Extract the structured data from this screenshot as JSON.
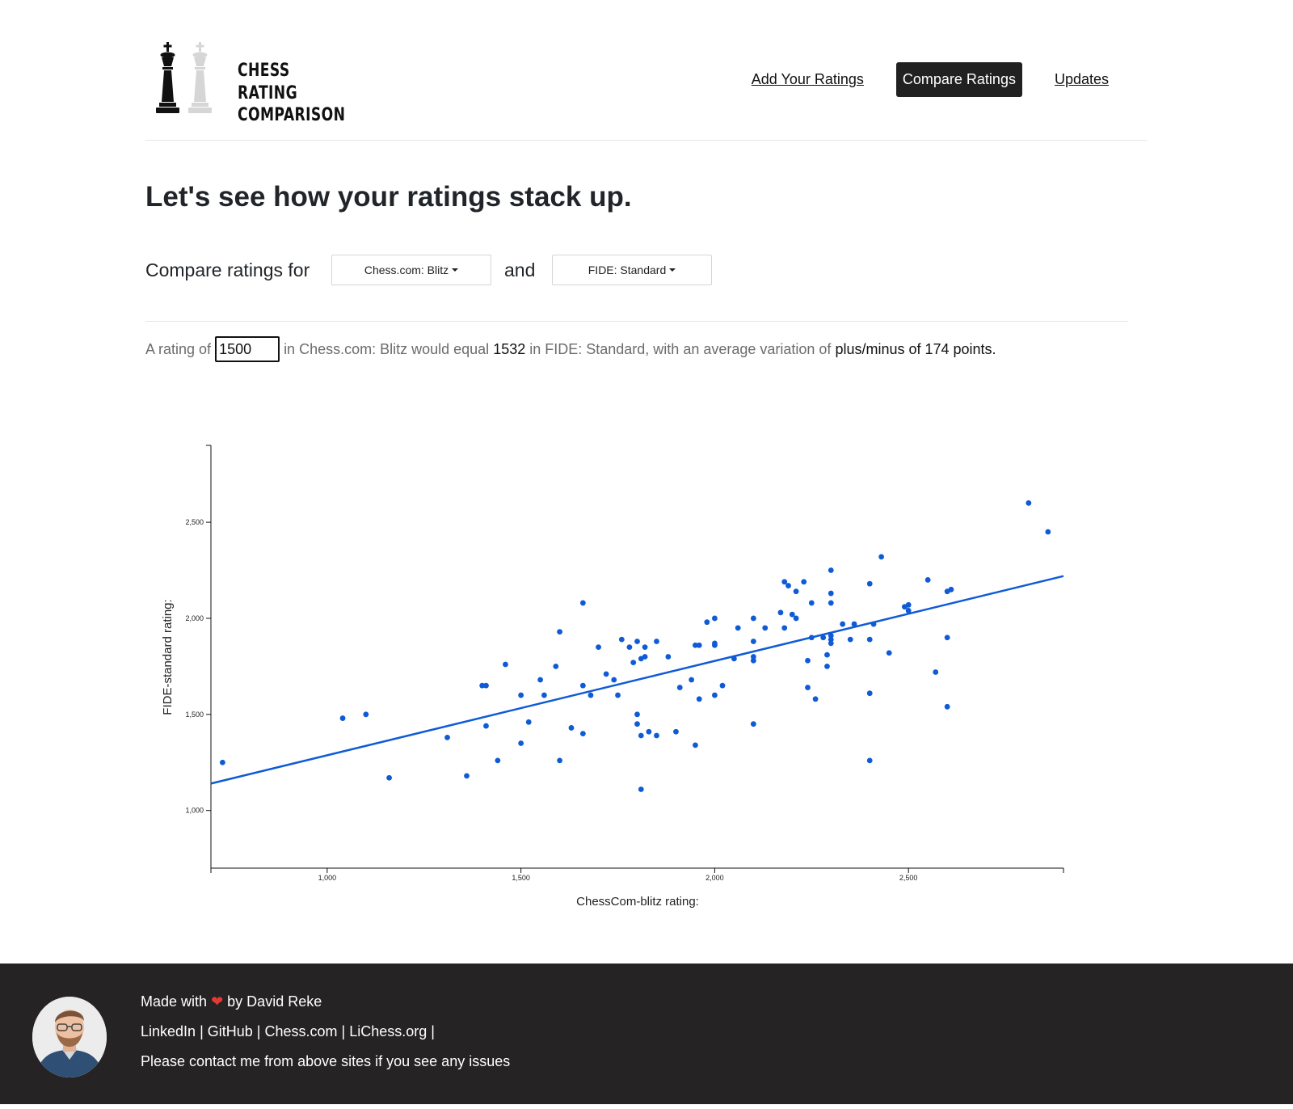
{
  "header": {
    "logo_lines": [
      "CHESS",
      "RATING",
      "COMPARISON"
    ],
    "nav": [
      {
        "label": "Add Your Ratings"
      },
      {
        "label": "Compare Ratings"
      },
      {
        "label": "Updates"
      }
    ]
  },
  "main": {
    "headline": "Let's see how your ratings stack up.",
    "compare_label": "Compare ratings for",
    "dropdown_a": "Chess.com: Blitz",
    "and_label": "and",
    "dropdown_b": "FIDE: Standard",
    "result": {
      "prefix": "A rating of",
      "input_value": "1500",
      "mid": "in Chess.com: Blitz would equal",
      "equal_value": "1532",
      "suffix": "in FIDE: Standard, with an average variation of",
      "variation": "plus/minus of 174 points."
    }
  },
  "chart_data": {
    "type": "scatter",
    "xlabel": "ChessCom-blitz rating:",
    "ylabel": "FIDE-standard rating:",
    "xlim": [
      700,
      2900
    ],
    "ylim": [
      700,
      2900
    ],
    "xticks": [
      {
        "v": 1000,
        "label": "1,000"
      },
      {
        "v": 1500,
        "label": "1,500"
      },
      {
        "v": 2000,
        "label": "2,000"
      },
      {
        "v": 2500,
        "label": "2,500"
      }
    ],
    "yticks": [
      {
        "v": 1000,
        "label": "1,000"
      },
      {
        "v": 1500,
        "label": "1,500"
      },
      {
        "v": 2000,
        "label": "2,000"
      },
      {
        "v": 2500,
        "label": "2,500"
      }
    ],
    "point_color": "#0f5bd6",
    "trend_line": {
      "x": [
        700,
        2900
      ],
      "y": [
        1140,
        2220
      ],
      "color": "#0f5bd6"
    },
    "points": [
      [
        730,
        1250
      ],
      [
        1040,
        1480
      ],
      [
        1100,
        1500
      ],
      [
        1160,
        1170
      ],
      [
        1310,
        1380
      ],
      [
        1360,
        1180
      ],
      [
        1400,
        1650
      ],
      [
        1410,
        1650
      ],
      [
        1410,
        1440
      ],
      [
        1440,
        1260
      ],
      [
        1460,
        1760
      ],
      [
        1500,
        1600
      ],
      [
        1500,
        1350
      ],
      [
        1520,
        1460
      ],
      [
        1550,
        1680
      ],
      [
        1560,
        1600
      ],
      [
        1590,
        1750
      ],
      [
        1600,
        1930
      ],
      [
        1600,
        1260
      ],
      [
        1630,
        1430
      ],
      [
        1660,
        2080
      ],
      [
        1660,
        1650
      ],
      [
        1660,
        1400
      ],
      [
        1680,
        1600
      ],
      [
        1700,
        1850
      ],
      [
        1720,
        1710
      ],
      [
        1740,
        1680
      ],
      [
        1750,
        1600
      ],
      [
        1760,
        1890
      ],
      [
        1780,
        1850
      ],
      [
        1790,
        1770
      ],
      [
        1800,
        1880
      ],
      [
        1800,
        1500
      ],
      [
        1800,
        1450
      ],
      [
        1810,
        1790
      ],
      [
        1810,
        1390
      ],
      [
        1810,
        1110
      ],
      [
        1820,
        1850
      ],
      [
        1820,
        1800
      ],
      [
        1830,
        1410
      ],
      [
        1850,
        1880
      ],
      [
        1850,
        1390
      ],
      [
        1880,
        1800
      ],
      [
        1900,
        1410
      ],
      [
        1910,
        1640
      ],
      [
        1940,
        1680
      ],
      [
        1950,
        1860
      ],
      [
        1950,
        1340
      ],
      [
        1960,
        1860
      ],
      [
        1960,
        1580
      ],
      [
        1980,
        1980
      ],
      [
        2000,
        2000
      ],
      [
        2000,
        1870
      ],
      [
        2000,
        1860
      ],
      [
        2000,
        1600
      ],
      [
        2020,
        1650
      ],
      [
        2050,
        1790
      ],
      [
        2060,
        1950
      ],
      [
        2100,
        2000
      ],
      [
        2100,
        1880
      ],
      [
        2100,
        1800
      ],
      [
        2100,
        1780
      ],
      [
        2100,
        1450
      ],
      [
        2130,
        1950
      ],
      [
        2170,
        2030
      ],
      [
        2180,
        2190
      ],
      [
        2180,
        1950
      ],
      [
        2190,
        2170
      ],
      [
        2200,
        2020
      ],
      [
        2210,
        2140
      ],
      [
        2210,
        2000
      ],
      [
        2230,
        2190
      ],
      [
        2240,
        1640
      ],
      [
        2240,
        1780
      ],
      [
        2250,
        2080
      ],
      [
        2250,
        1900
      ],
      [
        2260,
        1580
      ],
      [
        2280,
        1900
      ],
      [
        2290,
        1750
      ],
      [
        2290,
        1810
      ],
      [
        2300,
        2250
      ],
      [
        2300,
        2130
      ],
      [
        2300,
        2080
      ],
      [
        2300,
        1910
      ],
      [
        2300,
        1890
      ],
      [
        2300,
        1870
      ],
      [
        2330,
        1970
      ],
      [
        2350,
        1890
      ],
      [
        2360,
        1970
      ],
      [
        2400,
        2180
      ],
      [
        2400,
        1890
      ],
      [
        2400,
        1610
      ],
      [
        2400,
        1260
      ],
      [
        2410,
        1970
      ],
      [
        2430,
        2320
      ],
      [
        2450,
        1820
      ],
      [
        2490,
        2060
      ],
      [
        2500,
        2070
      ],
      [
        2500,
        2040
      ],
      [
        2550,
        2200
      ],
      [
        2570,
        1720
      ],
      [
        2600,
        2140
      ],
      [
        2600,
        1900
      ],
      [
        2600,
        1540
      ],
      [
        2610,
        2150
      ],
      [
        2810,
        2600
      ],
      [
        2860,
        2450
      ]
    ]
  },
  "footer": {
    "made_prefix": "Made with",
    "heart": "❤",
    "made_suffix": "by David Reke",
    "links": [
      "LinkedIn",
      "GitHub",
      "Chess.com",
      "LiChess.org"
    ],
    "separator": " | ",
    "contact": "Please contact me from above sites if you see any issues"
  }
}
